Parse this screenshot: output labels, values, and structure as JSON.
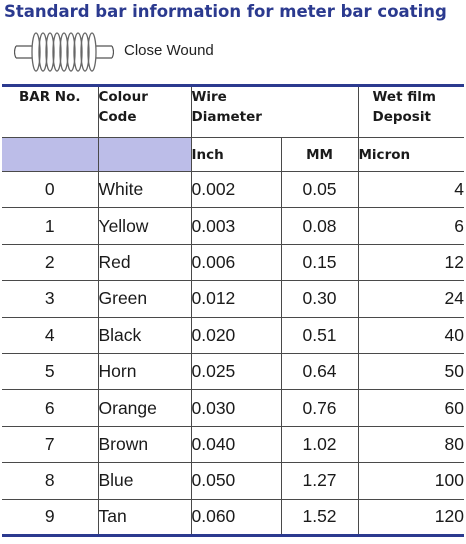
{
  "title": "Standard bar information for meter bar coating",
  "legend": {
    "icon": "coil-spring-icon",
    "label": "Close Wound"
  },
  "table": {
    "header_row1": {
      "bar_no": "BAR No.",
      "colour_line1": "Colour",
      "colour_line2": "Code",
      "wire_line1": "Wire",
      "wire_line2": "Diameter",
      "wet_line1": "Wet film",
      "wet_line2": "Deposit"
    },
    "header_row2": {
      "inch": "Inch",
      "mm": "MM",
      "micron": "Micron"
    },
    "header_shade_color": "#bcbde8",
    "accent_color": "#2b3a8f",
    "rows": [
      {
        "bar": "0",
        "colour": "White",
        "inch": "0.002",
        "mm": "0.05",
        "micron": "4"
      },
      {
        "bar": "1",
        "colour": "Yellow",
        "inch": "0.003",
        "mm": "0.08",
        "micron": "6"
      },
      {
        "bar": "2",
        "colour": "Red",
        "inch": "0.006",
        "mm": "0.15",
        "micron": "12"
      },
      {
        "bar": "3",
        "colour": "Green",
        "inch": "0.012",
        "mm": "0.30",
        "micron": "24"
      },
      {
        "bar": "4",
        "colour": "Black",
        "inch": "0.020",
        "mm": "0.51",
        "micron": "40"
      },
      {
        "bar": "5",
        "colour": "Horn",
        "inch": "0.025",
        "mm": "0.64",
        "micron": "50"
      },
      {
        "bar": "6",
        "colour": "Orange",
        "inch": "0.030",
        "mm": "0.76",
        "micron": "60"
      },
      {
        "bar": "7",
        "colour": "Brown",
        "inch": "0.040",
        "mm": "1.02",
        "micron": "80"
      },
      {
        "bar": "8",
        "colour": "Blue",
        "inch": "0.050",
        "mm": "1.27",
        "micron": "100"
      },
      {
        "bar": "9",
        "colour": "Tan",
        "inch": "0.060",
        "mm": "1.52",
        "micron": "120"
      }
    ]
  }
}
